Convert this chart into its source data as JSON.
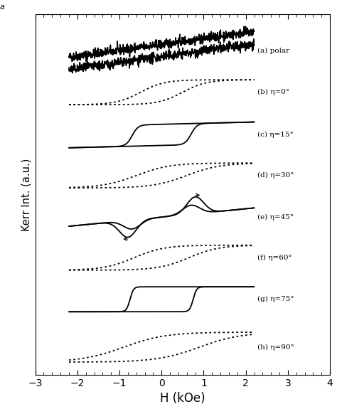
{
  "xlabel": "H (kOe)",
  "ylabel": "Kerr Int. (a.u.)",
  "xlim": [
    -3,
    4
  ],
  "ylim": [
    0,
    1
  ],
  "xticks": [
    -3,
    -2,
    -1,
    0,
    1,
    2,
    3,
    4
  ],
  "labels": [
    "(a) polar",
    "(b) η=0°",
    "(c) η=15°",
    "(d) η=30°",
    "(e) η=45°",
    "(f) η=60°",
    "(g) η=75°",
    "(h) η=90°"
  ],
  "offsets": [
    0.915,
    0.795,
    0.672,
    0.555,
    0.435,
    0.318,
    0.198,
    0.06
  ],
  "line_styles": [
    "solid",
    "dotted",
    "solid",
    "dotted",
    "solid",
    "dotted",
    "solid",
    "dotted"
  ],
  "bg_color": "#ffffff",
  "line_color": "#000000",
  "loop_half_amp": 0.036,
  "annotation_letter": "a"
}
